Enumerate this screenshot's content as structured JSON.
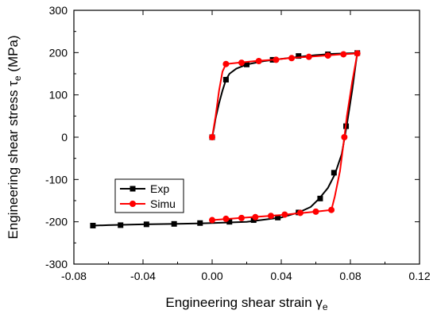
{
  "chart_data": {
    "type": "line",
    "title": "",
    "xlabel": "Engineering shear strain γ",
    "xlabel_sub": "e",
    "ylabel": "Engineering shear stress τ",
    "ylabel_sub": "e",
    "ylabel_unit": " (MPa)",
    "xlim": [
      -0.08,
      0.12
    ],
    "ylim": [
      -300,
      300
    ],
    "xticks": [
      -0.08,
      -0.04,
      0.0,
      0.04,
      0.08,
      0.12
    ],
    "xtick_labels": [
      "-0.08",
      "-0.04",
      "0.00",
      "0.04",
      "0.08",
      "0.12"
    ],
    "yticks": [
      -300,
      -200,
      -100,
      0,
      100,
      200,
      300
    ],
    "ytick_labels": [
      "-300",
      "-200",
      "-100",
      "0",
      "100",
      "200",
      "300"
    ],
    "grid": false,
    "legend_position": "lower-left",
    "series": [
      {
        "name": "Exp",
        "color": "#000000",
        "marker": "square",
        "line": [
          [
            0.0,
            0
          ],
          [
            0.001,
            20
          ],
          [
            0.002,
            45
          ],
          [
            0.004,
            80
          ],
          [
            0.006,
            110
          ],
          [
            0.008,
            136
          ],
          [
            0.01,
            150
          ],
          [
            0.014,
            162
          ],
          [
            0.02,
            172
          ],
          [
            0.03,
            180
          ],
          [
            0.04,
            185
          ],
          [
            0.05,
            190
          ],
          [
            0.06,
            194
          ],
          [
            0.07,
            197
          ],
          [
            0.084,
            199
          ],
          [
            0.083,
            170
          ],
          [
            0.081,
            110
          ],
          [
            0.078,
            30
          ],
          [
            0.075,
            -40
          ],
          [
            0.071,
            -88
          ],
          [
            0.067,
            -120
          ],
          [
            0.062,
            -145
          ],
          [
            0.057,
            -165
          ],
          [
            0.05,
            -178
          ],
          [
            0.04,
            -190
          ],
          [
            0.02,
            -200
          ],
          [
            0.0,
            -203
          ],
          [
            -0.02,
            -205
          ],
          [
            -0.04,
            -206
          ],
          [
            -0.06,
            -208
          ],
          [
            -0.069,
            -209
          ]
        ],
        "markers": [
          [
            0.0,
            0
          ],
          [
            0.008,
            136
          ],
          [
            0.02,
            172
          ],
          [
            0.035,
            183
          ],
          [
            0.05,
            192
          ],
          [
            0.067,
            196
          ],
          [
            0.084,
            199
          ],
          [
            0.0775,
            26
          ],
          [
            0.0705,
            -84
          ],
          [
            0.0625,
            -145
          ],
          [
            0.05,
            -178
          ],
          [
            0.038,
            -190
          ],
          [
            0.024,
            -196
          ],
          [
            0.01,
            -200
          ],
          [
            -0.007,
            -203
          ],
          [
            -0.022,
            -205
          ],
          [
            -0.038,
            -206
          ],
          [
            -0.053,
            -208
          ],
          [
            -0.069,
            -209
          ]
        ]
      },
      {
        "name": "Simu",
        "color": "#ff0000",
        "marker": "circle",
        "line": [
          [
            0.0,
            0
          ],
          [
            0.002,
            50
          ],
          [
            0.004,
            110
          ],
          [
            0.006,
            155
          ],
          [
            0.008,
            173
          ],
          [
            0.015,
            176
          ],
          [
            0.025,
            180
          ],
          [
            0.035,
            183
          ],
          [
            0.045,
            187
          ],
          [
            0.055,
            190
          ],
          [
            0.065,
            193
          ],
          [
            0.075,
            196
          ],
          [
            0.084,
            198
          ],
          [
            0.081,
            130
          ],
          [
            0.078,
            50
          ],
          [
            0.0765,
            0
          ],
          [
            0.074,
            -80
          ],
          [
            0.071,
            -140
          ],
          [
            0.069,
            -172
          ],
          [
            0.06,
            -176
          ],
          [
            0.05,
            -180
          ],
          [
            0.04,
            -184
          ],
          [
            0.03,
            -187
          ],
          [
            0.02,
            -190
          ],
          [
            0.01,
            -193
          ],
          [
            0.0,
            -196
          ]
        ],
        "markers": [
          [
            0.0,
            0
          ],
          [
            0.008,
            173
          ],
          [
            0.017,
            176
          ],
          [
            0.027,
            180
          ],
          [
            0.037,
            183
          ],
          [
            0.046,
            187
          ],
          [
            0.056,
            190
          ],
          [
            0.067,
            193
          ],
          [
            0.076,
            196
          ],
          [
            0.084,
            198
          ],
          [
            0.0765,
            0
          ],
          [
            0.069,
            -172
          ],
          [
            0.06,
            -176
          ],
          [
            0.051,
            -179
          ],
          [
            0.042,
            -183
          ],
          [
            0.034,
            -186
          ],
          [
            0.025,
            -189
          ],
          [
            0.017,
            -191
          ],
          [
            0.008,
            -193
          ],
          [
            0.0,
            -196
          ]
        ]
      }
    ]
  }
}
